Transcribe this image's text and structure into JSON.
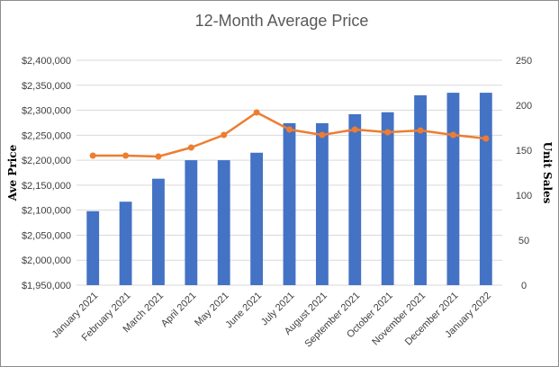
{
  "chart_data": {
    "type": "bar+line",
    "title": "12-Month Average Price",
    "xlabel": "",
    "ylabel": "Ave Price",
    "y2label": "Unit Sales",
    "categories": [
      "January 2021",
      "February 2021",
      "March 2021",
      "April 2021",
      "May 2021",
      "June 2021",
      "July 2021",
      "August 2021",
      "September 2021",
      "October 2021",
      "November 2021",
      "December 2021",
      "January 2022"
    ],
    "ylim": [
      1950000,
      2400000
    ],
    "y2lim": [
      0,
      250
    ],
    "y_ticks": [
      "$1,950,000",
      "$2,000,000",
      "$2,050,000",
      "$2,100,000",
      "$2,150,000",
      "$2,200,000",
      "$2,250,000",
      "$2,300,000",
      "$2,350,000",
      "$2,400,000"
    ],
    "y2_ticks": [
      "0",
      "50",
      "100",
      "150",
      "200",
      "250"
    ],
    "series": [
      {
        "type": "bar",
        "axis": "left",
        "values": [
          2098000,
          2117000,
          2163000,
          2200000,
          2200000,
          2215000,
          2274000,
          2274000,
          2292000,
          2296000,
          2330000,
          2335000,
          2335000
        ]
      },
      {
        "type": "line",
        "axis": "right",
        "values": [
          144,
          144,
          143,
          153,
          167,
          192,
          173,
          167,
          173,
          170,
          172,
          167,
          163
        ]
      }
    ],
    "grid": true,
    "legend": "none",
    "colors": {
      "bar": "#4472c4",
      "line": "#ed7d31",
      "grid": "#d9d9d9"
    }
  }
}
